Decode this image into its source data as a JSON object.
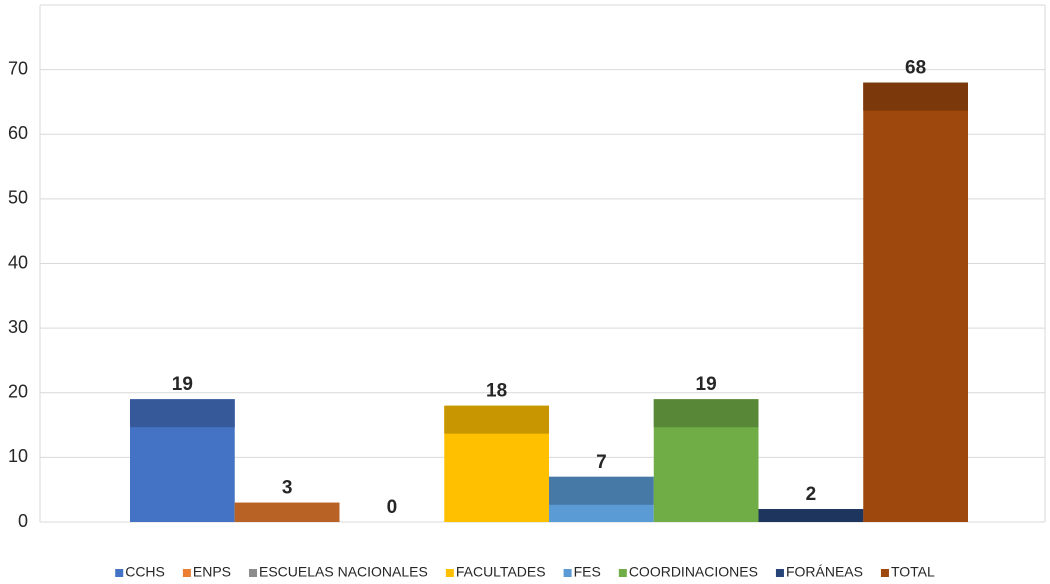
{
  "chart_data": {
    "type": "bar",
    "categories": [
      "CCHS",
      "ENPS",
      "ESCUELAS NACIONALES",
      "FACULTADES",
      "FES",
      "COORDINACIONES",
      "FORÁNEAS",
      "TOTAL"
    ],
    "values": [
      19,
      3,
      0,
      18,
      7,
      19,
      2,
      68
    ],
    "colors": [
      "#4472c4",
      "#ed7d31",
      "#8c8c8c",
      "#ffc000",
      "#5b9bd5",
      "#70ad47",
      "#264478",
      "#9e480e"
    ],
    "ylim": [
      0,
      80
    ],
    "yticks": [
      0,
      10,
      20,
      30,
      40,
      50,
      60,
      70
    ],
    "grid": true,
    "legend": "bottom"
  }
}
